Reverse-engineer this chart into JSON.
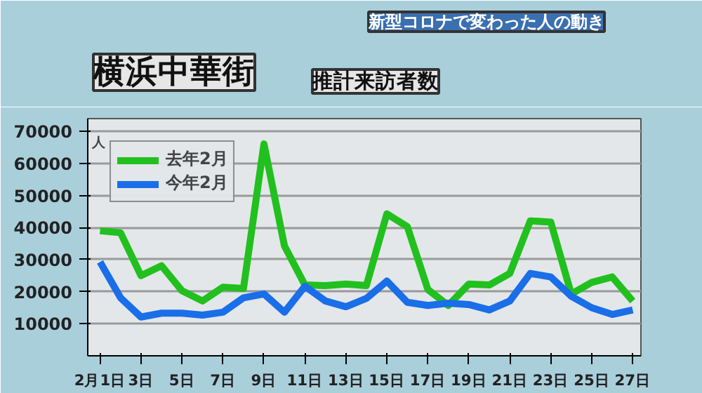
{
  "chart_data": {
    "type": "line",
    "title": "横浜中華街",
    "subtitle": "推計来訪者数",
    "annotations": [
      "新型コロナで変わった人の動き"
    ],
    "ylabel": "人",
    "x": [
      1,
      2,
      3,
      4,
      5,
      6,
      7,
      8,
      9,
      10,
      11,
      12,
      13,
      14,
      15,
      16,
      17,
      18,
      19,
      20,
      21,
      22,
      23,
      24,
      25,
      26,
      27
    ],
    "series": [
      {
        "name": "去年2月",
        "color": "#22c01e",
        "values": [
          39000,
          38400,
          25000,
          28100,
          20300,
          17100,
          21400,
          21000,
          66100,
          34300,
          22100,
          21900,
          22400,
          21900,
          44300,
          40300,
          20700,
          15700,
          22400,
          22100,
          25700,
          42100,
          41700,
          19300,
          22900,
          24600,
          17100
        ]
      },
      {
        "name": "今年2月",
        "color": "#1a6ee8",
        "values": [
          29300,
          18100,
          12100,
          13300,
          13300,
          12700,
          13600,
          18100,
          19300,
          13600,
          21700,
          17100,
          15300,
          17900,
          23300,
          16700,
          15700,
          16400,
          16000,
          14300,
          17100,
          25700,
          24600,
          18600,
          15000,
          12900,
          14300
        ]
      }
    ],
    "xlim": [
      0.4,
      27.4
    ],
    "xticks": [
      {
        "value": 1,
        "label": "2月1日"
      },
      {
        "value": 3,
        "label": "3日"
      },
      {
        "value": 5,
        "label": "5日"
      },
      {
        "value": 7,
        "label": "7日"
      },
      {
        "value": 9,
        "label": "9日"
      },
      {
        "value": 11,
        "label": "11日"
      },
      {
        "value": 13,
        "label": "13日"
      },
      {
        "value": 15,
        "label": "15日"
      },
      {
        "value": 17,
        "label": "17日"
      },
      {
        "value": 19,
        "label": "19日"
      },
      {
        "value": 21,
        "label": "21日"
      },
      {
        "value": 23,
        "label": "23日"
      },
      {
        "value": 25,
        "label": "25日"
      },
      {
        "value": 27,
        "label": "27日"
      }
    ],
    "ylim": [
      0,
      74000
    ],
    "yticks": [
      10000,
      20000,
      30000,
      40000,
      50000,
      60000,
      70000
    ],
    "grid": "y",
    "legend": "top left",
    "marker": "none",
    "line_style": "solid"
  }
}
